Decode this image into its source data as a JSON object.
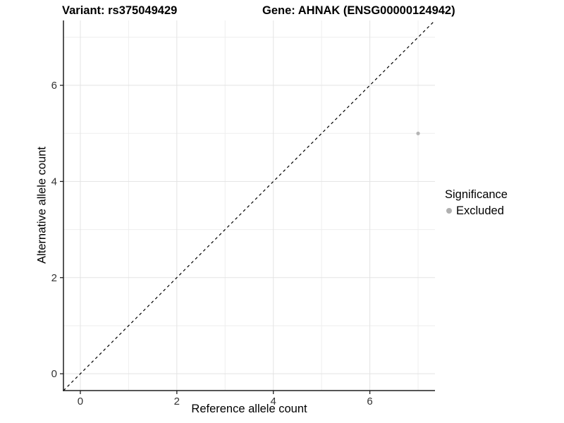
{
  "page": {
    "background": "#ffffff"
  },
  "titles": {
    "variant": "Variant: rs375049429",
    "gene": "Gene: AHNAK (ENSG00000124942)"
  },
  "chart_data": {
    "type": "scatter",
    "title_left": "Variant: rs375049429",
    "title_right": "Gene: AHNAK (ENSG00000124942)",
    "xlabel": "Reference allele count",
    "ylabel": "Alternative allele count",
    "xlim": [
      -0.35,
      7.35
    ],
    "ylim": [
      -0.35,
      7.35
    ],
    "xticks": [
      0,
      2,
      4,
      6
    ],
    "yticks": [
      0,
      2,
      4,
      6
    ],
    "xticks_minor": [
      1,
      3,
      5,
      7
    ],
    "yticks_minor": [
      1,
      3,
      5,
      7
    ],
    "grid": true,
    "legend_position": "right",
    "reference_line": {
      "type": "identity",
      "style": "dashed",
      "color": "#000000"
    },
    "series": [
      {
        "name": "Excluded",
        "color": "#b5b5b5",
        "points": [
          {
            "x": 7,
            "y": 5
          }
        ]
      }
    ],
    "legend": {
      "title": "Significance",
      "items": [
        {
          "label": "Excluded",
          "color": "#b0b0b0"
        }
      ]
    }
  },
  "style": {
    "grid_major_color": "#e3e3e3",
    "grid_minor_color": "#eeeeee",
    "axis_color": "#1f1f1f",
    "tick_label_color": "#333333"
  }
}
